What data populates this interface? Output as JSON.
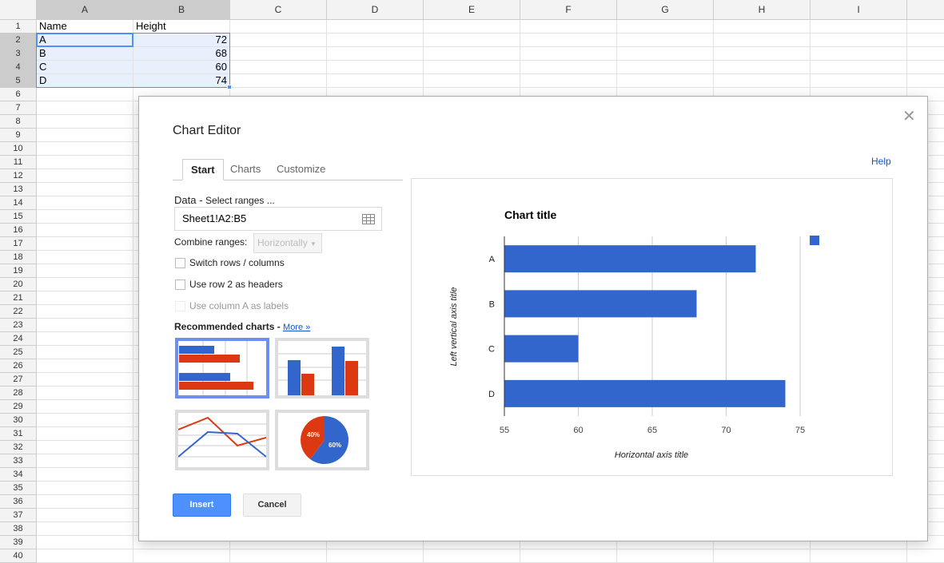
{
  "sheet": {
    "columns": [
      "A",
      "B",
      "C",
      "D",
      "E",
      "F",
      "G",
      "H",
      "I"
    ],
    "row_count": 40,
    "cells": [
      [
        "Name",
        "Height"
      ],
      [
        "A",
        "72"
      ],
      [
        "B",
        "68"
      ],
      [
        "C",
        "60"
      ],
      [
        "D",
        "74"
      ]
    ]
  },
  "dialog": {
    "title": "Chart Editor",
    "close_icon": "close-icon",
    "help": "Help",
    "tabs": [
      {
        "label": "Start",
        "active": true
      },
      {
        "label": "Charts"
      },
      {
        "label": "Customize"
      }
    ],
    "data_label": "Data -",
    "data_sublabel": "Select ranges ...",
    "range_value": "Sheet1!A2:B5",
    "combine_label": "Combine ranges:",
    "combine_value": "Horizontally",
    "switch_rows": "Switch rows / columns",
    "use_row_headers": "Use row 2 as headers",
    "use_col_labels": "Use column A as labels",
    "recommended": "Recommended charts -",
    "more": "More »",
    "pie_labels": [
      "40%",
      "60%"
    ],
    "insert": "Insert",
    "cancel": "Cancel"
  },
  "colors": {
    "blue": "#3366cc",
    "red": "#dc3912",
    "accent": "#4d90fe"
  },
  "chart_data": {
    "type": "bar",
    "orientation": "horizontal",
    "title": "Chart title",
    "xlabel": "Horizontal axis title",
    "ylabel": "Left vertical axis title",
    "categories": [
      "A",
      "B",
      "C",
      "D"
    ],
    "values": [
      72,
      68,
      60,
      74
    ],
    "xlim": [
      55,
      76
    ],
    "xticks": [
      "55",
      "60",
      "65",
      "70",
      "75"
    ],
    "grid": true,
    "legend": "top-right"
  }
}
